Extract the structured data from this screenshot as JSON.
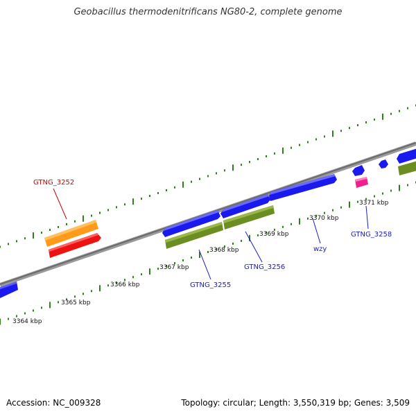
{
  "title": "Geobacillus thermodenitrificans NG80-2, complete genome",
  "footer": {
    "accession": "Accession: NC_009328",
    "summary": "Topology: circular; Length: 3,550,319 bp; Genes: 3,509"
  },
  "colors": {
    "backbone": "#8c8c8c",
    "tick": "#2e7d1e",
    "gene_blue": "#1a1aee",
    "gene_olive": "#6b8e23",
    "gene_orange": "#ff9a1a",
    "gene_red": "#ee1111",
    "gene_magenta": "#ee1f8f",
    "label_blue": "#1a1acc",
    "label_red": "#cc0000"
  },
  "kbp_labels": [
    "3364 kbp",
    "3365 kbp",
    "3366 kbp",
    "3367 kbp",
    "3368 kbp",
    "3369 kbp",
    "3370 kbp",
    "3371 kbp"
  ],
  "gene_labels": {
    "gtng_3252": "GTNG_3252",
    "gtng_3255": "GTNG_3255",
    "gtng_3256": "GTNG_3256",
    "wzy": "wzy",
    "gtng_3258": "GTNG_3258"
  }
}
